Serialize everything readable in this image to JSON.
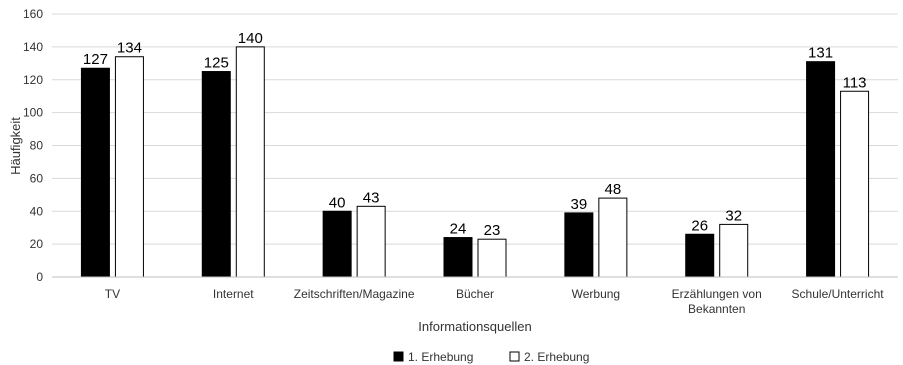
{
  "chart_data": {
    "type": "bar",
    "categories": [
      "TV",
      "Internet",
      "Zeitschriften/Magazine",
      "Bücher",
      "Werbung",
      "Erzählungen von Bekannten",
      "Schule/Unterricht"
    ],
    "category_lines": [
      [
        "TV"
      ],
      [
        "Internet"
      ],
      [
        "Zeitschriften/Magazine"
      ],
      [
        "Bücher"
      ],
      [
        "Werbung"
      ],
      [
        "Erzählungen von",
        "Bekannten"
      ],
      [
        "Schule/Unterricht"
      ]
    ],
    "series": [
      {
        "name": "1. Erhebung",
        "values": [
          127,
          125,
          40,
          24,
          39,
          26,
          131
        ],
        "fill": "#000000"
      },
      {
        "name": "2. Erhebung",
        "values": [
          134,
          140,
          43,
          23,
          48,
          32,
          113
        ],
        "fill": "#ffffff"
      }
    ],
    "xlabel": "Informationsquellen",
    "ylabel": "Häufigkeit",
    "ylim": [
      0,
      160
    ],
    "yticks": [
      0,
      20,
      40,
      60,
      80,
      100,
      120,
      140,
      160
    ],
    "grid": true,
    "legend_position": "bottom",
    "colors": {
      "gridline": "#d9d9d9",
      "bar_stroke": "#000000",
      "text": "#333333"
    }
  }
}
